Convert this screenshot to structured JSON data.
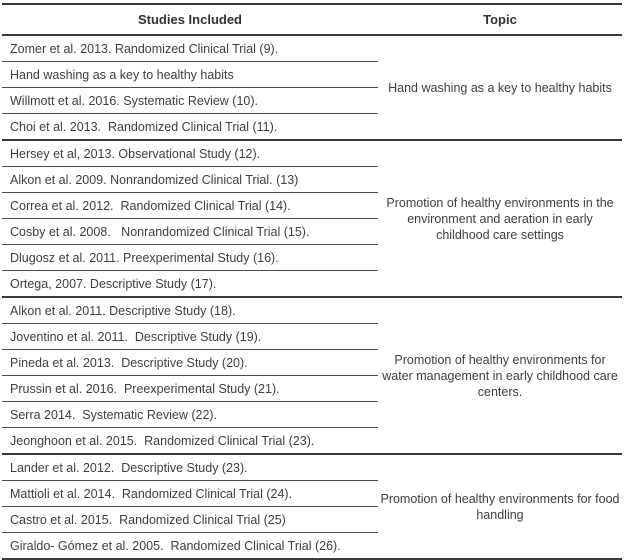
{
  "table": {
    "columns": [
      "Studies Included",
      "Topic"
    ],
    "groups": [
      {
        "topic": "Hand washing as a key to healthy habits",
        "studies": [
          "Zomer et al. 2013. Randomized Clinical Trial (9).",
          "Hand washing as a key to healthy habits",
          "Willmott et al. 2016. Systematic Review (10).",
          "Choi et al. 2013.  Randomized Clinical Trial (11)."
        ]
      },
      {
        "topic": "Promotion of healthy environments in the environment and aeration in early childhood care settings",
        "studies": [
          "Hersey et al, 2013. Observational Study (12).",
          "Alkon et al. 2009. Nonrandomized Clinical Trial. (13)",
          "Correa et al. 2012.  Randomized Clinical Trial (14).",
          "Cosby et al. 2008.   Nonrandomized Clinical Trial (15).",
          "Dlugosz et al. 2011. Preexperimental Study (16).",
          "Ortega, 2007. Descriptive Study (17)."
        ]
      },
      {
        "topic": "Promotion of healthy environments for water management in early childhood care centers.",
        "studies": [
          "Alkon et al. 2011. Descriptive Study (18).",
          "Joventino et al. 2011.  Descriptive Study (19).",
          "Pineda et al. 2013.  Descriptive Study (20).",
          "Prussin et al. 2016.  Preexperimental Study (21).",
          "Serra 2014.  Systematic Review (22).",
          "Jeonghoon et al. 2015.  Randomized Clinical Trial (23)."
        ]
      },
      {
        "topic": "Promotion of healthy environments for food handling",
        "studies": [
          "Lander et al. 2012.  Descriptive Study (23).",
          "Mattioli et al. 2014.  Randomized Clinical Trial (24).",
          "Castro et al. 2015.  Randomized Clinical Trial (25)",
          "Giraldo- Gómez et al. 2005.  Randomized Clinical Trial (26)."
        ]
      }
    ],
    "colors": {
      "text": "#3f3f3f",
      "rule_major": "#3a3a3a",
      "rule_row": "#4c4c4c",
      "background": "#ffffff"
    }
  }
}
